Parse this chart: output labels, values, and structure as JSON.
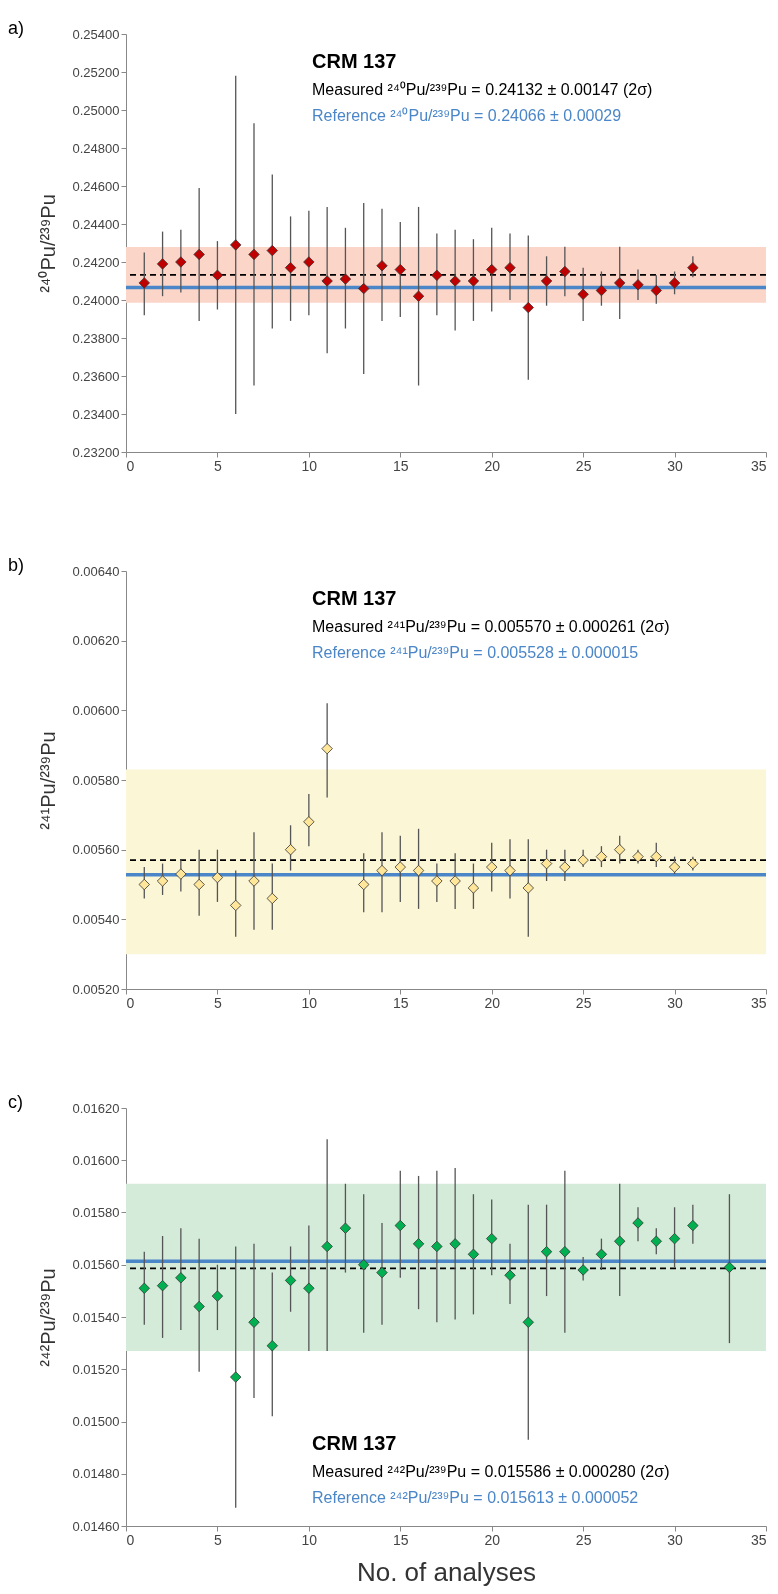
{
  "chart_data": [
    {
      "type": "scatter",
      "ylabel": "²⁴⁰Pu/²³⁹Pu",
      "annotations": [
        "a)",
        "CRM 137",
        "Measured ²⁴⁰Pu/²³⁹Pu = 0.24132 ± 0.00147 (2σ)",
        "Reference ²⁴⁰Pu/²³⁹Pu = 0.24066 ± 0.00029"
      ],
      "x": [
        1,
        2,
        3,
        4,
        5,
        6,
        7,
        8,
        9,
        10,
        11,
        12,
        13,
        14,
        15,
        16,
        17,
        18,
        19,
        20,
        21,
        22,
        23,
        24,
        25,
        26,
        27,
        28,
        29,
        30,
        31
      ],
      "series": [
        {
          "color": "#c00000",
          "values": [
            0.2409,
            0.2419,
            0.242,
            0.2424,
            0.2413,
            0.2429,
            0.2424,
            0.2426,
            0.2417,
            0.242,
            0.241,
            0.2411,
            0.2406,
            0.2418,
            0.2416,
            0.2402,
            0.2413,
            0.241,
            0.241,
            0.2416,
            0.2417,
            0.2396,
            0.241,
            0.2415,
            0.2403,
            0.2405,
            0.2409,
            0.2408,
            0.2405,
            0.2409,
            0.2417
          ],
          "errors": [
            [
              0.2392,
              0.2425
            ],
            [
              0.2402,
              0.2436
            ],
            [
              0.2404,
              0.2437
            ],
            [
              0.2389,
              0.2459
            ],
            [
              0.2395,
              0.2431
            ],
            [
              0.234,
              0.2518
            ],
            [
              0.2355,
              0.2493
            ],
            [
              0.2385,
              0.2466
            ],
            [
              0.2389,
              0.2444
            ],
            [
              0.2392,
              0.2447
            ],
            [
              0.2372,
              0.2449
            ],
            [
              0.2385,
              0.2438
            ],
            [
              0.2361,
              0.2451
            ],
            [
              0.2389,
              0.2448
            ],
            [
              0.2391,
              0.2441
            ],
            [
              0.2355,
              0.2449
            ],
            [
              0.2392,
              0.2435
            ],
            [
              0.2384,
              0.2437
            ],
            [
              0.2389,
              0.2432
            ],
            [
              0.2394,
              0.2438
            ],
            [
              0.24,
              0.2435
            ],
            [
              0.2358,
              0.2434
            ],
            [
              0.2397,
              0.2423
            ],
            [
              0.2402,
              0.2428
            ],
            [
              0.2389,
              0.2417
            ],
            [
              0.2397,
              0.2415
            ],
            [
              0.239,
              0.2428
            ],
            [
              0.24,
              0.2416
            ],
            [
              0.2398,
              0.2413
            ],
            [
              0.2403,
              0.2415
            ],
            [
              0.2412,
              0.2423
            ]
          ]
        }
      ],
      "marker": "diamond",
      "xlim": [
        0,
        35
      ],
      "xticks": [
        0,
        5,
        10,
        15,
        20,
        25,
        30,
        35
      ],
      "ylim": [
        0.232,
        0.254
      ],
      "yticks": [
        {
          "value": 0.232,
          "label": "0.23200"
        },
        {
          "value": 0.234,
          "label": "0.23400"
        },
        {
          "value": 0.236,
          "label": "0.23600"
        },
        {
          "value": 0.238,
          "label": "0.23800"
        },
        {
          "value": 0.24,
          "label": "0.24000"
        },
        {
          "value": 0.242,
          "label": "0.24200"
        },
        {
          "value": 0.244,
          "label": "0.24400"
        },
        {
          "value": 0.246,
          "label": "0.24600"
        },
        {
          "value": 0.248,
          "label": "0.24800"
        },
        {
          "value": 0.25,
          "label": "0.25000"
        },
        {
          "value": 0.252,
          "label": "0.25200"
        },
        {
          "value": 0.254,
          "label": "0.25400"
        }
      ],
      "bands": [
        {
          "axis": "y",
          "from": 0.23985,
          "to": 0.24279,
          "color": "#fbd5c8"
        }
      ],
      "ref_lines": [
        {
          "axis": "y",
          "value": 0.24066,
          "color": "#4a86c8",
          "line_style": "solid"
        },
        {
          "axis": "y",
          "value": 0.24132,
          "color": "#000000",
          "line_style": "dashed"
        }
      ],
      "grid": false
    },
    {
      "type": "scatter",
      "ylabel": "²⁴¹Pu/²³⁹Pu",
      "annotations": [
        "b)",
        "CRM 137",
        "Measured ²⁴¹Pu/²³⁹Pu = 0.005570 ± 0.000261 (2σ)",
        "Reference ²⁴¹Pu/²³⁹Pu = 0.005528 ± 0.000015"
      ],
      "x": [
        1,
        2,
        3,
        4,
        5,
        6,
        7,
        8,
        9,
        10,
        11,
        13,
        14,
        15,
        16,
        17,
        18,
        19,
        20,
        21,
        22,
        23,
        24,
        25,
        26,
        27,
        28,
        29,
        30,
        31
      ],
      "series": [
        {
          "color": "#ffe699",
          "values": [
            0.0055,
            0.00551,
            0.00553,
            0.0055,
            0.00552,
            0.00544,
            0.00551,
            0.00546,
            0.0056,
            0.00568,
            0.00589,
            0.0055,
            0.00554,
            0.00555,
            0.00554,
            0.00551,
            0.00551,
            0.00549,
            0.00555,
            0.00554,
            0.00549,
            0.00556,
            0.00555,
            0.00557,
            0.00558,
            0.0056,
            0.00558,
            0.00558,
            0.00555,
            0.00556
          ],
          "errors": [
            [
              0.00546,
              0.00555
            ],
            [
              0.00547,
              0.00556
            ],
            [
              0.00548,
              0.00557
            ],
            [
              0.00541,
              0.0056
            ],
            [
              0.00545,
              0.0056
            ],
            [
              0.00535,
              0.00554
            ],
            [
              0.00537,
              0.00565
            ],
            [
              0.00537,
              0.00556
            ],
            [
              0.00554,
              0.00567
            ],
            [
              0.00561,
              0.00576
            ],
            [
              0.00575,
              0.00602
            ],
            [
              0.00542,
              0.00559
            ],
            [
              0.00542,
              0.00565
            ],
            [
              0.00545,
              0.00564
            ],
            [
              0.00543,
              0.00566
            ],
            [
              0.00545,
              0.00556
            ],
            [
              0.00543,
              0.00559
            ],
            [
              0.00543,
              0.00556
            ],
            [
              0.00548,
              0.00562
            ],
            [
              0.00546,
              0.00563
            ],
            [
              0.00535,
              0.00563
            ],
            [
              0.00551,
              0.0056
            ],
            [
              0.00551,
              0.0056
            ],
            [
              0.00555,
              0.0056
            ],
            [
              0.00555,
              0.00561
            ],
            [
              0.00556,
              0.00564
            ],
            [
              0.00556,
              0.0056
            ],
            [
              0.00555,
              0.00562
            ],
            [
              0.00553,
              0.00558
            ],
            [
              0.00554,
              0.00558
            ]
          ]
        }
      ],
      "marker": "diamond",
      "xlim": [
        0,
        35
      ],
      "xticks": [
        0,
        5,
        10,
        15,
        20,
        25,
        30,
        35
      ],
      "ylim": [
        0.0052,
        0.0064
      ],
      "yticks": [
        {
          "value": 0.0052,
          "label": "0.00520"
        },
        {
          "value": 0.0054,
          "label": "0.00540"
        },
        {
          "value": 0.0056,
          "label": "0.00560"
        },
        {
          "value": 0.0058,
          "label": "0.00580"
        },
        {
          "value": 0.006,
          "label": "0.00600"
        },
        {
          "value": 0.0062,
          "label": "0.00620"
        },
        {
          "value": 0.0064,
          "label": "0.00640"
        }
      ],
      "bands": [
        {
          "axis": "y",
          "from": 0.0053,
          "to": 0.00583,
          "color": "#fbf6d6"
        }
      ],
      "ref_lines": [
        {
          "axis": "y",
          "value": 0.005528,
          "color": "#4a86c8",
          "line_style": "solid"
        },
        {
          "axis": "y",
          "value": 0.00557,
          "color": "#000000",
          "line_style": "dashed"
        }
      ],
      "grid": false
    },
    {
      "type": "scatter",
      "xlabel": "No. of analyses",
      "ylabel": "²⁴²Pu/²³⁹Pu",
      "annotations": [
        "c)",
        "CRM 137",
        "Measured ²⁴²Pu/²³⁹Pu = 0.015586 ± 0.000280 (2σ)",
        "Reference ²⁴²Pu/²³⁹Pu = 0.015613 ± 0.000052"
      ],
      "x": [
        1,
        2,
        3,
        4,
        5,
        6,
        7,
        8,
        9,
        10,
        11,
        12,
        13,
        14,
        15,
        16,
        17,
        18,
        19,
        20,
        21,
        22,
        23,
        24,
        25,
        26,
        27,
        28,
        29,
        30,
        31,
        33
      ],
      "series": [
        {
          "color": "#00b050",
          "values": [
            0.01551,
            0.01552,
            0.01555,
            0.01544,
            0.01548,
            0.01517,
            0.01538,
            0.01529,
            0.01554,
            0.01551,
            0.01567,
            0.01574,
            0.0156,
            0.01557,
            0.01575,
            0.01568,
            0.01567,
            0.01568,
            0.01564,
            0.0157,
            0.01556,
            0.01538,
            0.01565,
            0.01565,
            0.01558,
            0.01564,
            0.01569,
            0.01576,
            0.01569,
            0.0157,
            0.01575,
            0.01559
          ],
          "errors": [
            [
              0.01537,
              0.01565
            ],
            [
              0.01532,
              0.01571
            ],
            [
              0.01535,
              0.01574
            ],
            [
              0.01519,
              0.0157
            ],
            [
              0.01535,
              0.0156
            ],
            [
              0.01467,
              0.01567
            ],
            [
              0.01509,
              0.01568
            ],
            [
              0.01502,
              0.01557
            ],
            [
              0.01542,
              0.01567
            ],
            [
              0.01527,
              0.01575
            ],
            [
              0.01527,
              0.01608
            ],
            [
              0.01557,
              0.01591
            ],
            [
              0.01534,
              0.01587
            ],
            [
              0.01537,
              0.01576
            ],
            [
              0.01555,
              0.01596
            ],
            [
              0.01543,
              0.01594
            ],
            [
              0.01538,
              0.01596
            ],
            [
              0.01539,
              0.01597
            ],
            [
              0.01541,
              0.01587
            ],
            [
              0.01556,
              0.01585
            ],
            [
              0.01545,
              0.01568
            ],
            [
              0.01493,
              0.01583
            ],
            [
              0.01548,
              0.01583
            ],
            [
              0.01534,
              0.01596
            ],
            [
              0.01554,
              0.01563
            ],
            [
              0.01558,
              0.0157
            ],
            [
              0.01548,
              0.01591
            ],
            [
              0.01569,
              0.01582
            ],
            [
              0.01564,
              0.01574
            ],
            [
              0.01559,
              0.01582
            ],
            [
              0.01568,
              0.01583
            ],
            [
              0.0153,
              0.01587
            ]
          ]
        }
      ],
      "marker": "diamond",
      "xlim": [
        0,
        35
      ],
      "xticks": [
        0,
        5,
        10,
        15,
        20,
        25,
        30,
        35
      ],
      "ylim": [
        0.0146,
        0.0162
      ],
      "yticks": [
        {
          "value": 0.0146,
          "label": "0.01460"
        },
        {
          "value": 0.0148,
          "label": "0.01480"
        },
        {
          "value": 0.015,
          "label": "0.01500"
        },
        {
          "value": 0.0152,
          "label": "0.01520"
        },
        {
          "value": 0.0154,
          "label": "0.01540"
        },
        {
          "value": 0.0156,
          "label": "0.01560"
        },
        {
          "value": 0.0158,
          "label": "0.01580"
        },
        {
          "value": 0.016,
          "label": "0.01600"
        },
        {
          "value": 0.0162,
          "label": "0.01620"
        }
      ],
      "bands": [
        {
          "axis": "y",
          "from": 0.01527,
          "to": 0.01591,
          "color": "#d5ebd9"
        }
      ],
      "ref_lines": [
        {
          "axis": "y",
          "value": 0.015613,
          "color": "#4a86c8",
          "line_style": "solid"
        },
        {
          "axis": "y",
          "value": 0.015586,
          "color": "#000000",
          "line_style": "dashed"
        }
      ],
      "grid": false
    }
  ]
}
